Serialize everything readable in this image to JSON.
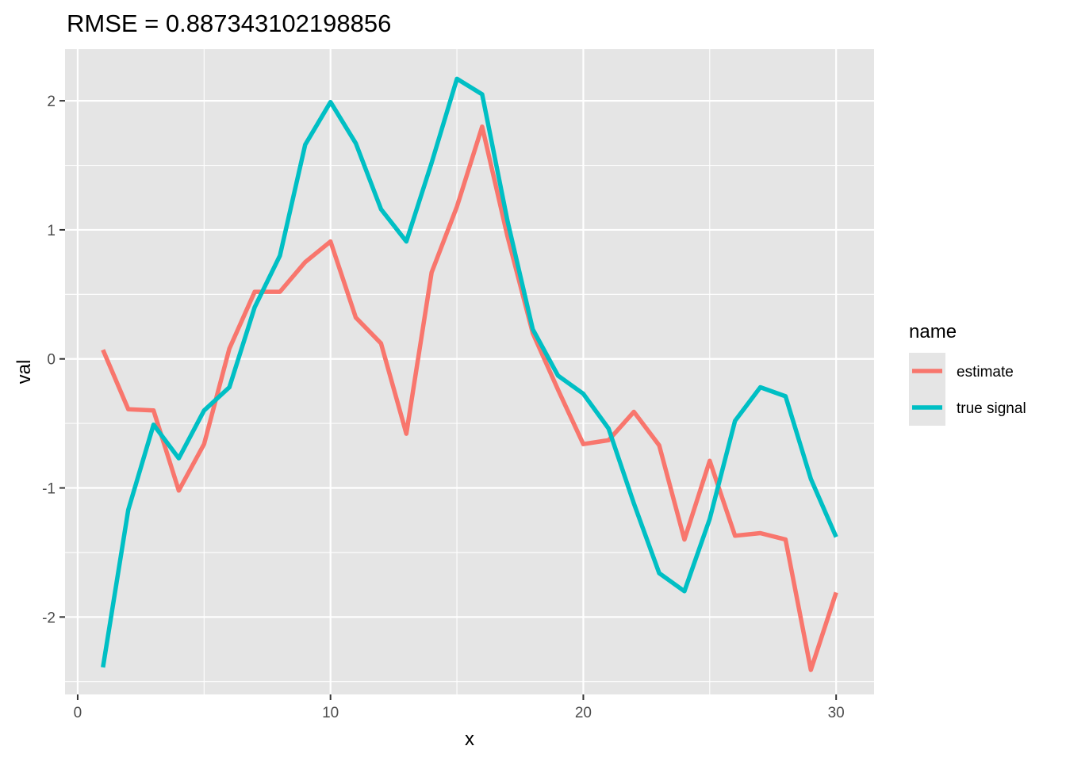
{
  "chart_data": {
    "type": "line",
    "title": "RMSE = 0.887343102198856",
    "xlabel": "x",
    "ylabel": "val",
    "xlim": [
      -0.5,
      31.5
    ],
    "ylim": [
      -2.6,
      2.4
    ],
    "xticks": [
      0,
      10,
      20,
      30
    ],
    "yticks": [
      -2,
      -1,
      0,
      1,
      2
    ],
    "grid": true,
    "background": "#E5E5E5",
    "legend": {
      "title": "name",
      "placement": "right"
    },
    "x": [
      1,
      2,
      3,
      4,
      5,
      6,
      7,
      8,
      9,
      10,
      11,
      12,
      13,
      14,
      15,
      16,
      17,
      18,
      19,
      20,
      21,
      22,
      23,
      24,
      25,
      26,
      27,
      28,
      29,
      30
    ],
    "series": [
      {
        "name": "estimate",
        "color": "#F8766D",
        "values": [
          0.07,
          -0.39,
          -0.4,
          -1.02,
          -0.66,
          0.08,
          0.52,
          0.52,
          0.75,
          0.91,
          0.32,
          0.12,
          -0.58,
          0.67,
          1.18,
          1.8,
          0.95,
          0.2,
          -0.24,
          -0.66,
          -0.63,
          -0.41,
          -0.67,
          -1.4,
          -0.79,
          -1.37,
          -1.35,
          -1.4,
          -2.41,
          -1.81
        ]
      },
      {
        "name": "true signal",
        "color": "#00BFC4",
        "values": [
          -2.39,
          -1.17,
          -0.51,
          -0.77,
          -0.4,
          -0.22,
          0.4,
          0.8,
          1.66,
          1.99,
          1.67,
          1.16,
          0.91,
          1.52,
          2.17,
          2.05,
          1.07,
          0.23,
          -0.13,
          -0.27,
          -0.54,
          -1.12,
          -1.66,
          -1.8,
          -1.24,
          -0.48,
          -0.22,
          -0.29,
          -0.93,
          -1.38
        ]
      }
    ]
  }
}
